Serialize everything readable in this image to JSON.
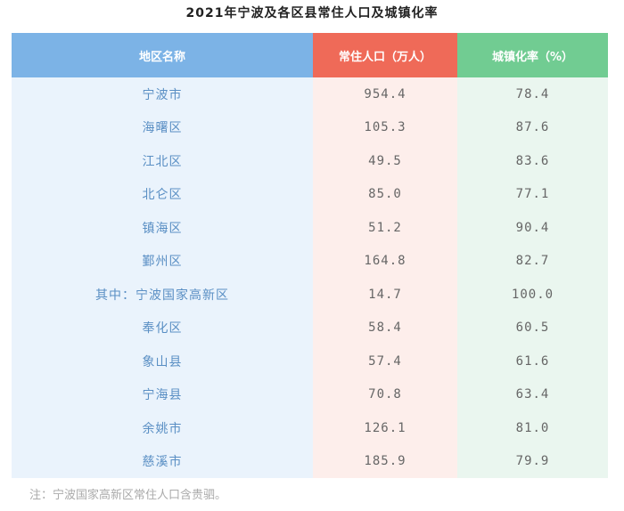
{
  "title": "2021年宁波及各区县常住人口及城镇化率",
  "table": {
    "headers": [
      "地区名称",
      "常住人口（万人）",
      "城镇化率（%）"
    ],
    "header_colors": [
      "#7cb3e6",
      "#ef6a58",
      "#71cc92"
    ],
    "rows": [
      {
        "region": "宁波市",
        "population": "954.4",
        "urbanization": "78.4"
      },
      {
        "region": "海曙区",
        "population": "105.3",
        "urbanization": "87.6"
      },
      {
        "region": "江北区",
        "population": "49.5",
        "urbanization": "83.6"
      },
      {
        "region": "北仑区",
        "population": "85.0",
        "urbanization": "77.1"
      },
      {
        "region": "镇海区",
        "population": "51.2",
        "urbanization": "90.4"
      },
      {
        "region": "鄞州区",
        "population": "164.8",
        "urbanization": "82.7"
      },
      {
        "region": "其中：宁波国家高新区",
        "population": "14.7",
        "urbanization": "100.0"
      },
      {
        "region": "奉化区",
        "population": "58.4",
        "urbanization": "60.5"
      },
      {
        "region": "象山县",
        "population": "57.4",
        "urbanization": "61.6"
      },
      {
        "region": "宁海县",
        "population": "70.8",
        "urbanization": "63.4"
      },
      {
        "region": "余姚市",
        "population": "126.1",
        "urbanization": "81.0"
      },
      {
        "region": "慈溪市",
        "population": "185.9",
        "urbanization": "79.9"
      }
    ]
  },
  "note": "注：宁波国家高新区常住人口含贵驷。"
}
